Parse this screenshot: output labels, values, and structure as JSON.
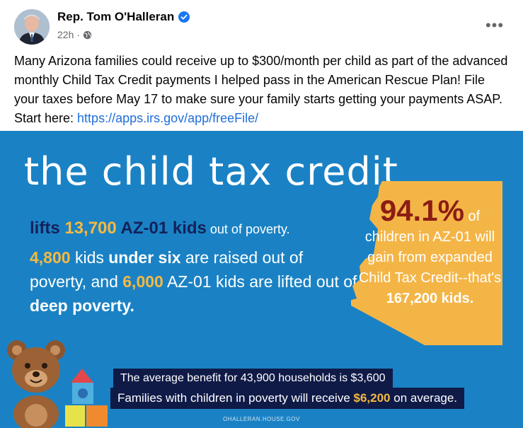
{
  "post": {
    "author": "Rep. Tom O'Halleran",
    "time": "22h",
    "meta_sep": "·",
    "more_label": "•••",
    "text": "Many Arizona families could receive up to $300/month per child as part of the advanced monthly Child Tax Credit payments I helped pass in the American Rescue Plan! File your taxes before May 17 to make sure your family starts getting your payments ASAP. Start here: ",
    "link": "https://apps.irs.gov/app/freeFile/"
  },
  "graphic": {
    "title": "the child tax credit",
    "line1_a": "lifts ",
    "line1_num": "13,700",
    "line1_b": " AZ-01 kids",
    "line1_c": " out of poverty.",
    "p_num1": "4,800",
    "p_t1": " kids ",
    "p_b1": "under six",
    "p_t2": " are raised out of poverty, and ",
    "p_num2": "6,000",
    "p_t3": " AZ-01 kids are lifted out of ",
    "p_b2": "deep poverty.",
    "pct": "94.1%",
    "pct_of": "of",
    "az_text": "children in AZ-01 will gain from expanded Child Tax Credit--that's",
    "az_end": "167,200 kids.",
    "box1": "The average benefit for 43,900 households is $3,600",
    "box2_a": "Families with children in poverty will receive ",
    "box2_num": "$6,200",
    "box2_b": " on average.",
    "footer": "OHALLERAN.HOUSE.GOV"
  },
  "colors": {
    "background_blue": "#1a82c4",
    "navy": "#14215a",
    "yellow": "#f5b942",
    "az_orange": "#f4b547",
    "pct_red": "#8c1d15",
    "link": "#216fdb"
  },
  "icons": {
    "verified": "verified-badge-icon",
    "globe": "globe-icon",
    "more": "more-options-icon"
  }
}
